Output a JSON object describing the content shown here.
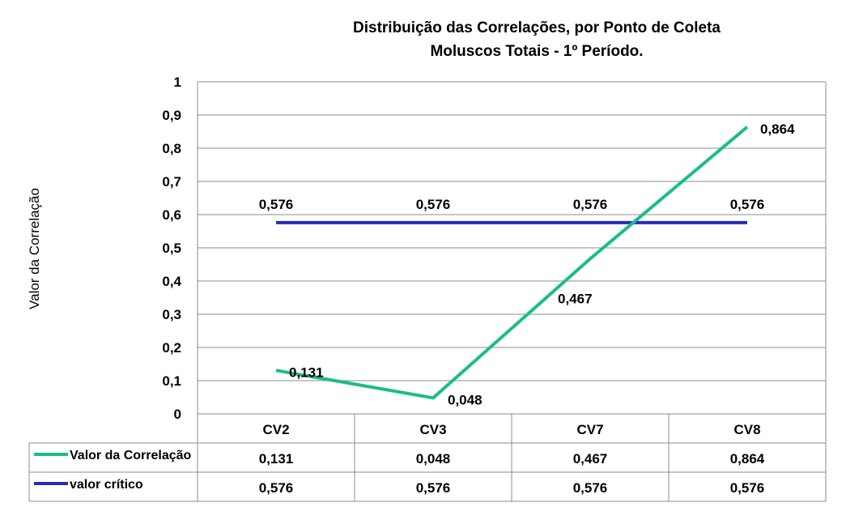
{
  "chart_data": {
    "type": "line",
    "title": "Distribuição das Correlações, por Ponto de Coleta",
    "subtitle": "Moluscos Totais - 1º Período.",
    "xlabel": "",
    "ylabel": "Valor da Correlação",
    "categories": [
      "CV2",
      "CV3",
      "CV7",
      "CV8"
    ],
    "ylim": [
      0,
      1
    ],
    "yticks": [
      "0",
      "0,1",
      "0,2",
      "0,3",
      "0,4",
      "0,5",
      "0,6",
      "0,7",
      "0,8",
      "0,9",
      "1"
    ],
    "grid": true,
    "legend": "data-table",
    "series": [
      {
        "name": "Valor da Correlação",
        "color": "#1abc8c",
        "values": [
          0.131,
          0.048,
          0.467,
          0.864
        ],
        "labels": [
          "0,131",
          "0,048",
          "0,467",
          "0,864"
        ]
      },
      {
        "name": "valor crítico",
        "color": "#2a2ab8",
        "values": [
          0.576,
          0.576,
          0.576,
          0.576
        ],
        "labels": [
          "0,576",
          "0,576",
          "0,576",
          "0,576"
        ]
      }
    ]
  }
}
